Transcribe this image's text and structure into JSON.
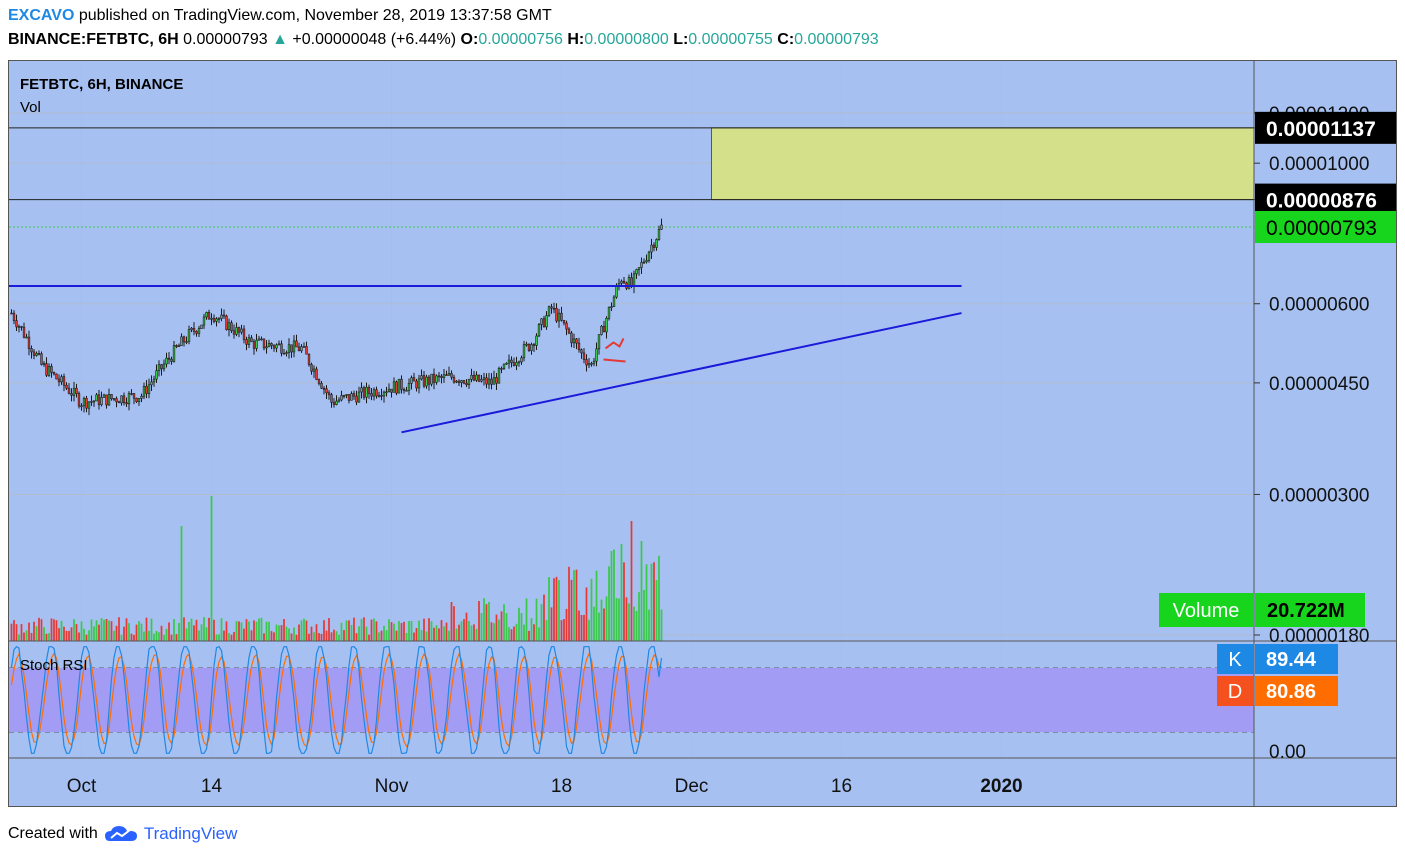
{
  "header": {
    "author": "EXCAVO",
    "published_text": "published on TradingView.com, November 28, 2019 13:37:58 GMT",
    "symbol": "BINANCE:FETBTC, 6H",
    "last": "0.00000793",
    "change_arrow": "▲",
    "change": "+0.00000048 (+6.44%)",
    "o_label": "O:",
    "o": "0.00000756",
    "h_label": "H:",
    "h": "0.00000800",
    "l_label": "L:",
    "l": "0.00000755",
    "c_label": "C:",
    "c": "0.00000793"
  },
  "pane_labels": {
    "title": "FETBTC, 6H, BINANCE",
    "vol": "Vol",
    "stoch": "Stoch RSI"
  },
  "footer": {
    "created_with": "Created with",
    "brand": "TradingView",
    "logo_icon": "tradingview-cloud-icon"
  },
  "colors": {
    "background": "#a6c1f1",
    "up": "#3ac94a",
    "down": "#e53935",
    "target_zone": "#d4e08a",
    "trendline": "#1a1adb",
    "price_badge": "#17d41d",
    "stoch_band": "#a39cf5",
    "k_line": "#1e88e5",
    "d_line": "#ff6d00"
  },
  "chart_data": [
    {
      "type": "candlestick",
      "title": "FETBTC, 6H, BINANCE",
      "x_tick_labels": [
        "Oct",
        "14",
        "Nov",
        "18",
        "Dec",
        "16",
        "2020"
      ],
      "y_tick_labels": [
        "0.00001200",
        "0.00001000",
        "0.00000600",
        "0.00000450",
        "0.00000300",
        "0.00000180"
      ],
      "y_tick_values": [
        1.2e-05,
        1e-05,
        6e-06,
        4.5e-06,
        3e-06,
        1.8e-06
      ],
      "price_labels": [
        {
          "value": 1.137e-05,
          "text": "0.00001137",
          "style": "black"
        },
        {
          "value": 8.76e-06,
          "text": "0.00000876",
          "style": "black"
        },
        {
          "value": 7.93e-06,
          "text": "0.00000793",
          "style": "green"
        }
      ],
      "target_zone": {
        "x_start": "Dec 3, 2019",
        "x_end": "right edge",
        "y_low": 8.76e-06,
        "y_high": 1.137e-05
      },
      "horizontal_line": {
        "value": 6.4e-06,
        "x_start": "Sep 24, 2019",
        "x_end": "Dec 28, 2019"
      },
      "trendline": {
        "from": {
          "date": "Nov 2, 2019",
          "value": 3.76e-06
        },
        "to": {
          "date": "Dec 28, 2019",
          "value": 5.8e-06
        }
      },
      "key_closes": [
        {
          "date": "Sep 24",
          "value": 5.8e-06
        },
        {
          "date": "Sep 27",
          "value": 4.8e-06
        },
        {
          "date": "Oct 1",
          "value": 4.2e-06
        },
        {
          "date": "Oct 7",
          "value": 4.3e-06
        },
        {
          "date": "Oct 11",
          "value": 5.2e-06
        },
        {
          "date": "Oct 14",
          "value": 5.8e-06
        },
        {
          "date": "Oct 18",
          "value": 5.2e-06
        },
        {
          "date": "Oct 23",
          "value": 5.1e-06
        },
        {
          "date": "Oct 26",
          "value": 4.2e-06
        },
        {
          "date": "Oct 31",
          "value": 4.4e-06
        },
        {
          "date": "Nov 7",
          "value": 4.6e-06
        },
        {
          "date": "Nov 11",
          "value": 4.5e-06
        },
        {
          "date": "Nov 15",
          "value": 5.2e-06
        },
        {
          "date": "Nov 17",
          "value": 5.9e-06
        },
        {
          "date": "Nov 20",
          "value": 5e-06
        },
        {
          "date": "Nov 21",
          "value": 4.8e-06
        },
        {
          "date": "Nov 24",
          "value": 6.6e-06
        },
        {
          "date": "Nov 25",
          "value": 6.4e-06
        },
        {
          "date": "Nov 28",
          "value": 7.93e-06
        }
      ]
    },
    {
      "type": "bar",
      "title": "Vol",
      "badge_label": "Volume",
      "badge_value": "20.722M",
      "note": "volume bars colored by candle direction; spikes near Oct 11, Oct 14 and Nov 23-26"
    },
    {
      "type": "line",
      "title": "Stoch RSI",
      "y_tick_labels": [
        "0.00"
      ],
      "band": [
        20,
        80
      ],
      "series": [
        {
          "name": "K",
          "last": "89.44"
        },
        {
          "name": "D",
          "last": "80.86"
        }
      ]
    }
  ]
}
